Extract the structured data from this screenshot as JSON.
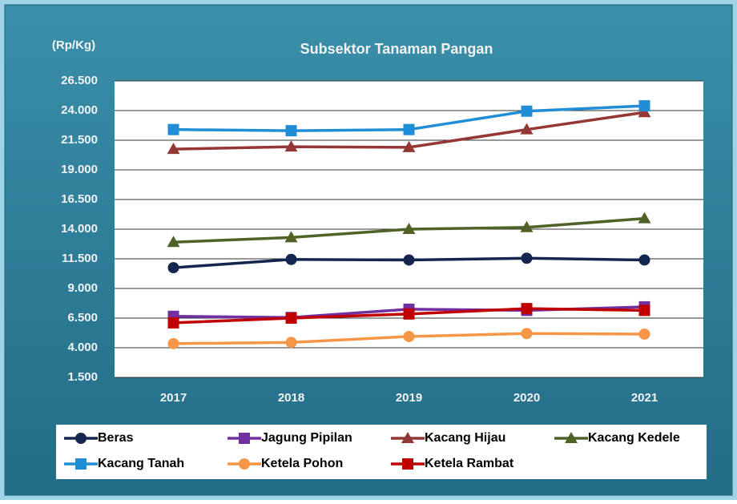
{
  "chart_data": {
    "type": "line",
    "title": "Subsektor Tanaman Pangan",
    "y_label": "(Rp/Kg)",
    "categories": [
      "2017",
      "2018",
      "2019",
      "2020",
      "2021"
    ],
    "series": [
      {
        "name": "Beras",
        "color": "#14264f",
        "marker": "circle",
        "values": [
          10750,
          11450,
          11400,
          11550,
          11400
        ]
      },
      {
        "name": "Jagung Pipilan",
        "color": "#7030a0",
        "marker": "square",
        "values": [
          6650,
          6550,
          7250,
          7150,
          7450
        ]
      },
      {
        "name": "Kacang Hijau",
        "color": "#953735",
        "marker": "triangle",
        "values": [
          20750,
          20950,
          20900,
          22400,
          23850
        ]
      },
      {
        "name": "Kacang Kedele",
        "color": "#4f6228",
        "marker": "triangle",
        "values": [
          12900,
          13300,
          14000,
          14150,
          14900
        ]
      },
      {
        "name": "Kacang Tanah",
        "color": "#1f8ed6",
        "marker": "square",
        "values": [
          22400,
          22300,
          22400,
          23950,
          24400
        ]
      },
      {
        "name": "Ketela Pohon",
        "color": "#f79646",
        "marker": "circle",
        "values": [
          4350,
          4450,
          4950,
          5200,
          5150
        ]
      },
      {
        "name": "Ketela Rambat",
        "color": "#c00000",
        "marker": "square",
        "values": [
          6100,
          6500,
          6850,
          7300,
          7150
        ]
      }
    ],
    "ylim": [
      1500,
      26500
    ],
    "yticks": [
      {
        "value": 1500,
        "label": "1.500"
      },
      {
        "value": 4000,
        "label": "4.000"
      },
      {
        "value": 6500,
        "label": "6.500"
      },
      {
        "value": 9000,
        "label": "9.000"
      },
      {
        "value": 11500,
        "label": "11.500"
      },
      {
        "value": 14000,
        "label": "14.000"
      },
      {
        "value": 16500,
        "label": "16.500"
      },
      {
        "value": 19000,
        "label": "19.000"
      },
      {
        "value": 21500,
        "label": "21.500"
      },
      {
        "value": 24000,
        "label": "24.000"
      },
      {
        "value": 26500,
        "label": "26.500"
      }
    ],
    "grid": true,
    "legend": "bottom"
  }
}
